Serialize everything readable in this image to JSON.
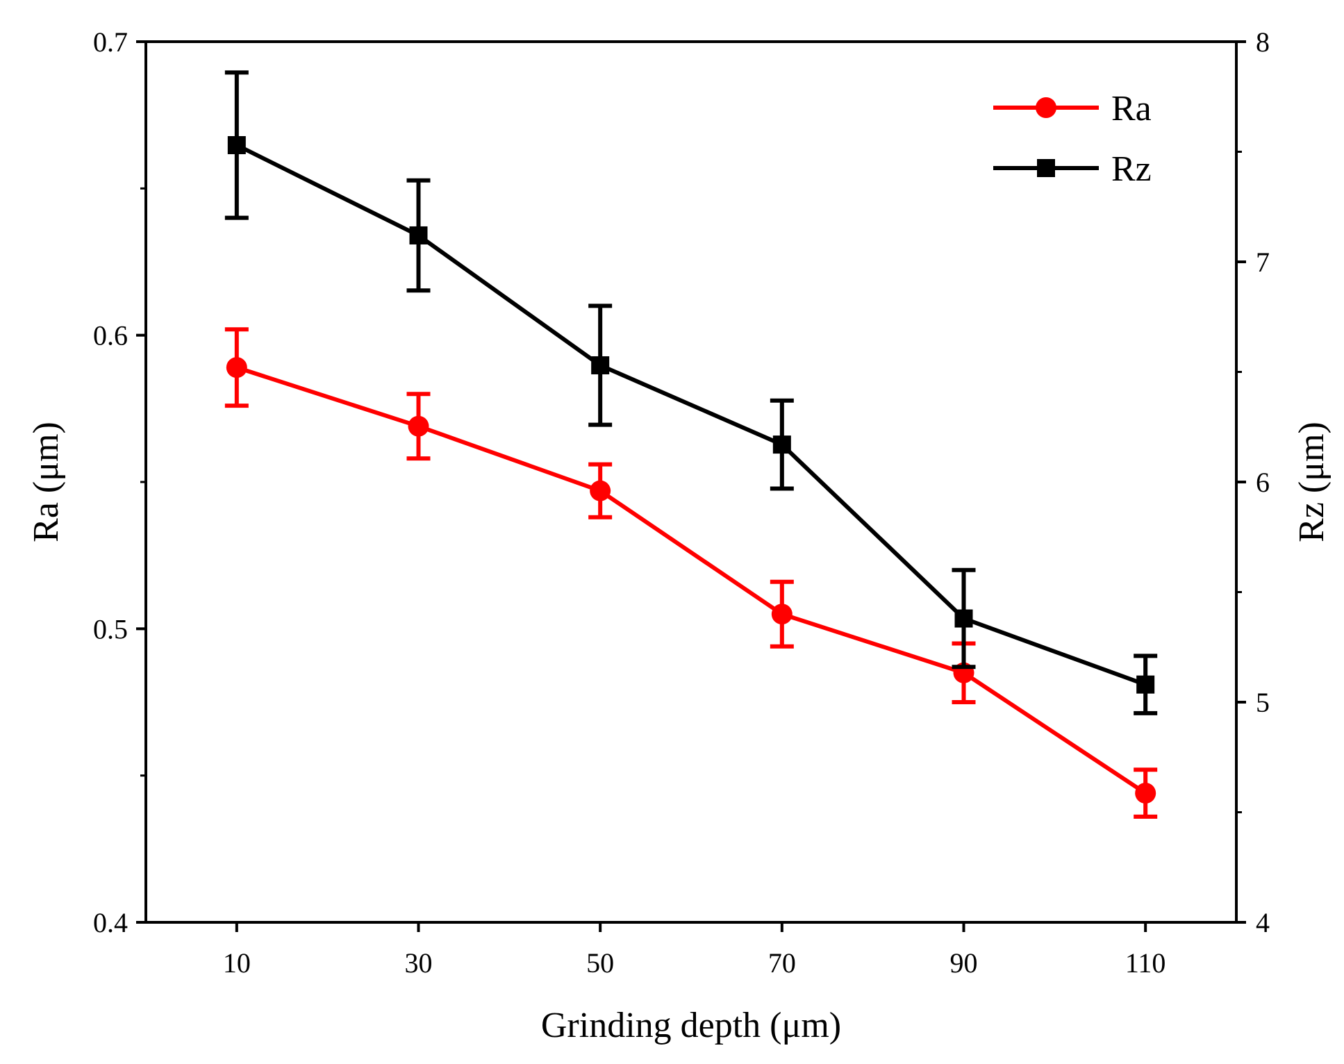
{
  "chart_data": {
    "type": "line",
    "title": "",
    "xlabel": "Grinding depth (μm)",
    "ylabel_left": "Ra (μm)",
    "ylabel_right": "Rz (μm)",
    "x": [
      10,
      30,
      50,
      70,
      90,
      110
    ],
    "x_tick_labels": [
      "10",
      "30",
      "50",
      "70",
      "90",
      "110"
    ],
    "xlim": [
      0,
      120
    ],
    "ylim_left": [
      0.4,
      0.7
    ],
    "y_ticks_left": [
      "0.4",
      "0.5",
      "0.6",
      "0.7"
    ],
    "ylim_right": [
      4,
      8
    ],
    "y_ticks_right": [
      "4",
      "5",
      "6",
      "7",
      "8"
    ],
    "grid": false,
    "legend_position": "top-right",
    "series": [
      {
        "name": "Ra",
        "axis": "left",
        "color": "#ff0000",
        "marker": "circle",
        "values": [
          0.589,
          0.569,
          0.547,
          0.505,
          0.485,
          0.444
        ],
        "error": [
          0.013,
          0.011,
          0.009,
          0.011,
          0.01,
          0.008
        ]
      },
      {
        "name": "Rz",
        "axis": "right",
        "color": "#000000",
        "marker": "square",
        "values": [
          7.53,
          7.12,
          6.53,
          6.17,
          5.38,
          5.08
        ],
        "error": [
          0.33,
          0.25,
          0.27,
          0.2,
          0.22,
          0.13
        ]
      }
    ]
  }
}
